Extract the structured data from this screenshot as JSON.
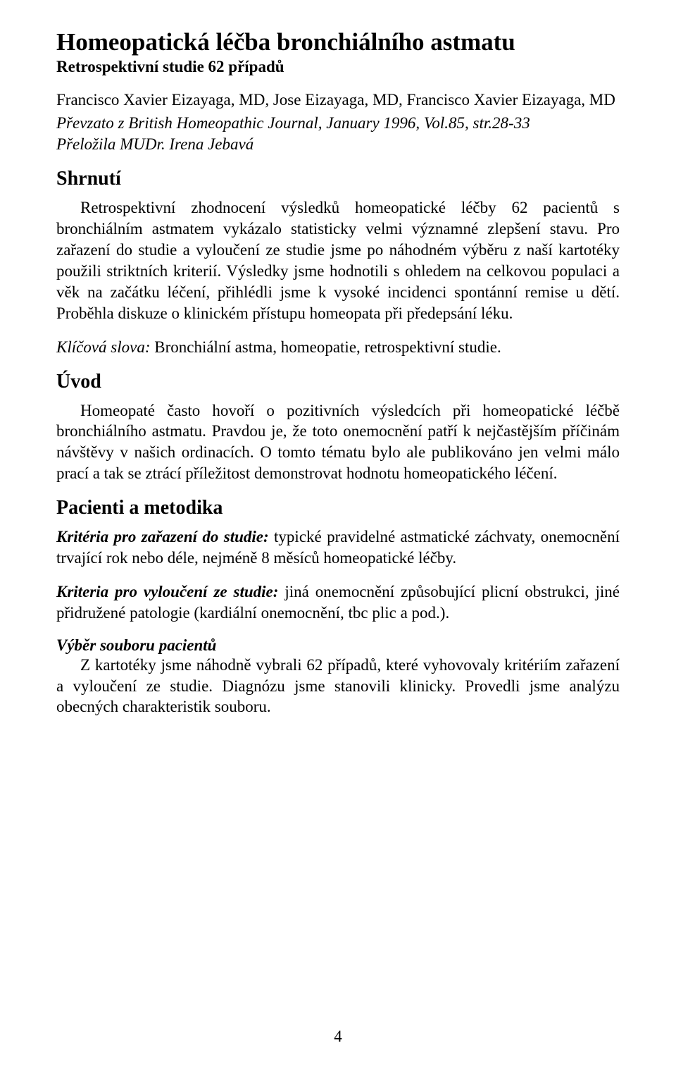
{
  "title": "Homeopatická léčba bronchiálního astmatu",
  "subtitle": "Retrospektivní studie 62 případů",
  "authors": "Francisco Xavier Eizayaga, MD, Jose Eizayaga, MD, Francisco Xavier Eizayaga, MD",
  "source": "Převzato z British  Homeopathic Journal, January 1996, Vol.85, str.28-33",
  "translator": "Přeložila MUDr. Irena Jebavá",
  "sections": {
    "shrnuti": {
      "heading": "Shrnutí",
      "body": "Retrospektivní zhodnocení výsledků homeopatické léčby 62 pacientů s bronchiálním astmatem vykázalo statisticky velmi významné zlepšení stavu. Pro zařazení do studie a vyloučení ze studie jsme po náhodném  výběru z naší kartotéky použili striktních kriterií. Výsledky jsme hodnotili s ohledem na celkovou populaci a věk na začátku léčení, přihlédli jsme k vysoké incidenci spontánní remise u dětí. Proběhla diskuze o klinickém přístupu homeopata při předepsání léku."
    },
    "keywords": {
      "label": "Klíčová slova:",
      "text": " Bronchiální astma, homeopatie, retrospektivní studie."
    },
    "uvod": {
      "heading": "Úvod",
      "body": "Homeopaté často hovoří o pozitivních výsledcích při homeopatické léčbě bronchiálního astmatu. Pravdou je, že toto onemocnění patří k nejčastějším příčinám návštěvy v našich ordinacích. O tomto tématu bylo ale publikováno jen velmi málo prací  a tak se ztrácí příležitost demonstrovat hodnotu homeopatického léčení."
    },
    "pacienti": {
      "heading": "Pacienti a metodika",
      "crit1_label": "Kritéria pro zařazení do studie:",
      "crit1_text": " typické pravidelné astmatické záchvaty, onemocnění trvající rok nebo déle, nejméně 8 měsíců homeopatické léčby.",
      "crit2_label": "Kriteria pro vyloučení ze studie:",
      "crit2_text": " jiná onemocnění způsobující plicní obstrukci, jiné přidružené patologie (kardiální onemocnění, tbc plic a pod.).",
      "vyber_title": "Výběr souboru  pacientů",
      "vyber_body": "Z kartotéky jsme náhodně vybrali 62 případů, které vyhovovaly kritériím zařazení a vyloučení ze studie. Diagnózu jsme stanovili klinicky. Provedli jsme analýzu obecných charakteristik souboru."
    }
  },
  "page_number": "4"
}
